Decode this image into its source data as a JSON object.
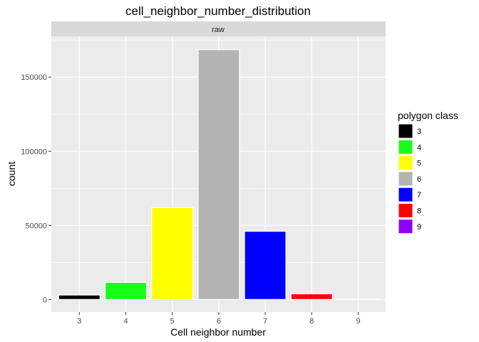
{
  "chart_data": {
    "type": "bar",
    "title": "cell_neighbor_number_distribution",
    "facet": "raw",
    "xlabel": "Cell neighbor number",
    "ylabel": "count",
    "categories": [
      "3",
      "4",
      "5",
      "6",
      "7",
      "8",
      "9"
    ],
    "values": [
      3000,
      11500,
      62000,
      168500,
      46000,
      3800,
      300
    ],
    "colors": [
      "#000000",
      "#19ff19",
      "#ffff00",
      "#b3b3b3",
      "#0000ff",
      "#ff0000",
      "#8f00ff"
    ],
    "y_ticks": [
      0,
      50000,
      100000,
      150000
    ],
    "y_tick_labels": [
      "0",
      "50000",
      "100000",
      "150000"
    ],
    "ylim": [
      -8500,
      177500
    ],
    "grid": true,
    "legend": {
      "title": "polygon class",
      "position": "right",
      "entries": [
        "3",
        "4",
        "5",
        "6",
        "7",
        "8",
        "9"
      ]
    },
    "theme": {
      "panel_bg": "#ebebeb",
      "strip_bg": "#d9d9d9",
      "grid_color": "#ffffff"
    }
  }
}
